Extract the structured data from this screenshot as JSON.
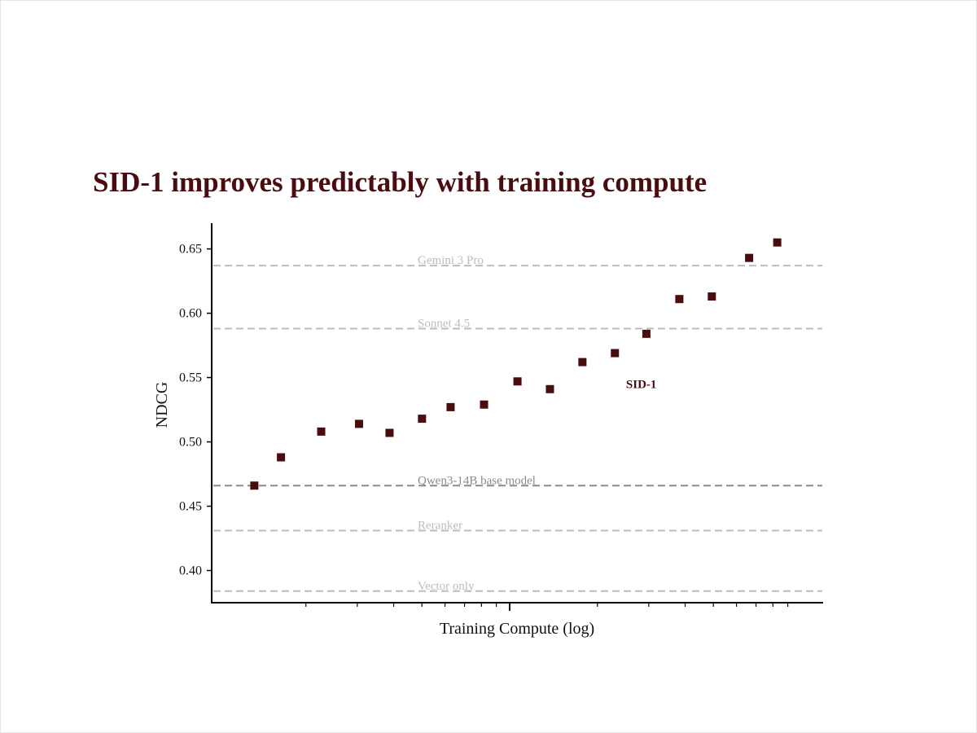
{
  "chart_data": {
    "type": "scatter",
    "title": "SID-1 improves predictably with training compute",
    "xlabel": "Training Compute (log)",
    "ylabel": "NDCG",
    "xscale": "log",
    "ylim": [
      0.375,
      0.67
    ],
    "yticks": [
      0.4,
      0.45,
      0.5,
      0.55,
      0.6,
      0.65
    ],
    "ytick_labels": [
      "0.40",
      "0.45",
      "0.50",
      "0.55",
      "0.60",
      "0.65"
    ],
    "grid": false,
    "series": [
      {
        "name": "SID-1",
        "color": "#4a0c0f",
        "marker": "square",
        "x_index": [
          0.088,
          0.143,
          0.226,
          0.304,
          0.367,
          0.434,
          0.493,
          0.562,
          0.631,
          0.698,
          0.765,
          0.832,
          0.897,
          0.965,
          1.032,
          1.109,
          1.167
        ],
        "y": [
          0.466,
          0.488,
          0.508,
          0.514,
          0.507,
          0.518,
          0.527,
          0.529,
          0.547,
          0.541,
          0.562,
          0.569,
          0.584,
          0.611,
          0.613,
          0.643,
          0.655
        ]
      }
    ],
    "reference_lines": [
      {
        "label": "Gemini 3 Pro",
        "y": 0.637,
        "color": "#bdbdbd"
      },
      {
        "label": "Sonnet 4.5",
        "y": 0.588,
        "color": "#bdbdbd"
      },
      {
        "label": "Qwen3-14B base model",
        "y": 0.466,
        "color": "#8a8a8a"
      },
      {
        "label": "Reranker",
        "y": 0.431,
        "color": "#bdbdbd"
      },
      {
        "label": "Vector only",
        "y": 0.384,
        "color": "#bdbdbd"
      }
    ],
    "annotations": [
      {
        "text": "SID-1",
        "x_index": 0.855,
        "y": 0.545,
        "color": "#4a0c0f"
      }
    ]
  }
}
